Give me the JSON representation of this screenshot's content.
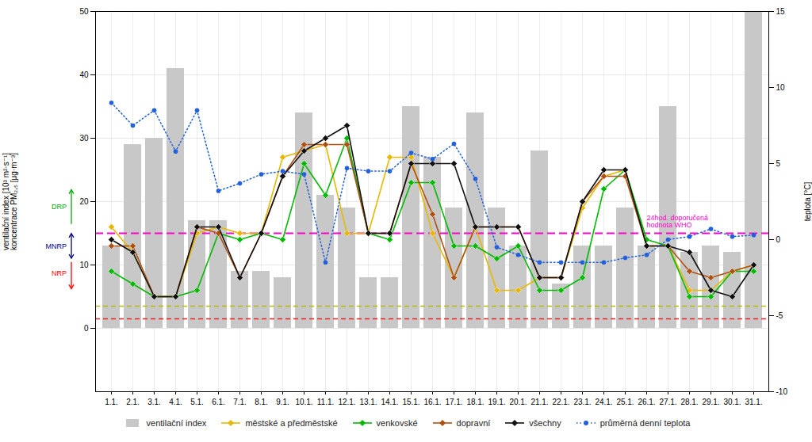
{
  "chart_data": {
    "type": "bar",
    "categories": [
      "1.1.",
      "2.1.",
      "3.1.",
      "4.1.",
      "5.1.",
      "6.1.",
      "7.1.",
      "8.1.",
      "9.1.",
      "10.1.",
      "11.1.",
      "12.1.",
      "13.1.",
      "14.1.",
      "15.1.",
      "16.1.",
      "17.1.",
      "18.1.",
      "19.1.",
      "20.1.",
      "21.1.",
      "22.1.",
      "23.1.",
      "24.1.",
      "25.1.",
      "26.1.",
      "27.1.",
      "28.1.",
      "29.1.",
      "30.1.",
      "31.1."
    ],
    "series": [
      {
        "name": "ventilační index",
        "type": "bar",
        "color": "#c8c8c8",
        "values": [
          13,
          29,
          30,
          41,
          17,
          17,
          9,
          9,
          8,
          34,
          21,
          19,
          8,
          8,
          35,
          27,
          19,
          34,
          19,
          13,
          28,
          7,
          13,
          13,
          19,
          13,
          35,
          12,
          13,
          12,
          50
        ]
      },
      {
        "name": "městské a předměstské",
        "type": "line",
        "color": "#e8b800",
        "marker": "diamond",
        "line_style": "solid",
        "values": [
          16,
          12,
          5,
          5,
          15,
          16,
          15,
          15,
          27,
          28,
          29,
          15,
          15,
          27,
          27,
          15,
          8,
          16,
          6,
          6,
          8,
          8,
          19,
          24,
          25,
          13,
          13,
          6,
          6,
          9,
          10
        ]
      },
      {
        "name": "venkovské",
        "type": "line",
        "color": "#00bb00",
        "marker": "diamond",
        "line_style": "solid",
        "values": [
          9,
          7,
          5,
          5,
          6,
          15,
          14,
          15,
          14,
          26,
          21,
          30,
          15,
          14,
          23,
          23,
          13,
          13,
          11,
          13,
          6,
          6,
          8,
          22,
          25,
          14,
          13,
          5,
          5,
          9,
          9
        ]
      },
      {
        "name": "dopravní",
        "type": "line",
        "color": "#b05010",
        "marker": "diamond",
        "line_style": "solid",
        "values": [
          13,
          13,
          5,
          5,
          16,
          15,
          8,
          15,
          24,
          29,
          29,
          29,
          15,
          15,
          26,
          18,
          8,
          16,
          16,
          16,
          8,
          8,
          20,
          24,
          24,
          13,
          13,
          9,
          8,
          9,
          10
        ]
      },
      {
        "name": "všechny",
        "type": "line",
        "color": "#101010",
        "marker": "diamond",
        "line_style": "solid",
        "values": [
          14,
          12,
          5,
          5,
          16,
          16,
          8,
          15,
          24,
          28,
          30,
          32,
          15,
          15,
          26,
          26,
          26,
          16,
          16,
          16,
          8,
          8,
          20,
          25,
          25,
          13,
          13,
          12,
          6,
          5,
          10
        ]
      },
      {
        "name": "průměrná denní teplota",
        "type": "line",
        "color": "#2060dd",
        "marker": "circle",
        "line_style": "dotted",
        "axis": "y2",
        "values": [
          9.0,
          7.5,
          8.5,
          5.8,
          8.5,
          3.2,
          3.7,
          4.3,
          4.5,
          4.3,
          -1.5,
          4.7,
          4.5,
          4.5,
          5.7,
          5.3,
          6.3,
          4.0,
          -0.5,
          -1.0,
          -1.5,
          -1.5,
          -1.5,
          -1.5,
          -1.2,
          -1.0,
          0.0,
          0.2,
          0.7,
          0.2,
          0.3
        ]
      }
    ],
    "ylabel": "ventilační index [10³ m²·s⁻¹]\nkoncentrace PM₂,₅ [μg·m⁻³]",
    "y2label": "teplota [°C]",
    "ylim": [
      -10,
      50
    ],
    "yticks": [
      0,
      10,
      20,
      30,
      40,
      50
    ],
    "y2lim": [
      -10,
      15
    ],
    "y2ticks": [
      -10,
      -5,
      0,
      5,
      10,
      15
    ],
    "grid": true,
    "legend": "bottom",
    "reference_lines": [
      {
        "value": 15,
        "color": "#ff00cc",
        "line_style": "dashed",
        "label": "24hod. doporučená\nhodnota WHO"
      },
      {
        "value": 3.5,
        "color": "#b8b800",
        "line_style": "dashed"
      },
      {
        "value": 1.5,
        "color": "#ee2020",
        "line_style": "dashed"
      }
    ],
    "annotations": [
      {
        "text": "DRP",
        "color": "#00aa00",
        "arrow": "up"
      },
      {
        "text": "MNRP",
        "color": "#000080",
        "arrow": "both"
      },
      {
        "text": "NRP",
        "color": "red",
        "arrow": "down"
      }
    ]
  }
}
